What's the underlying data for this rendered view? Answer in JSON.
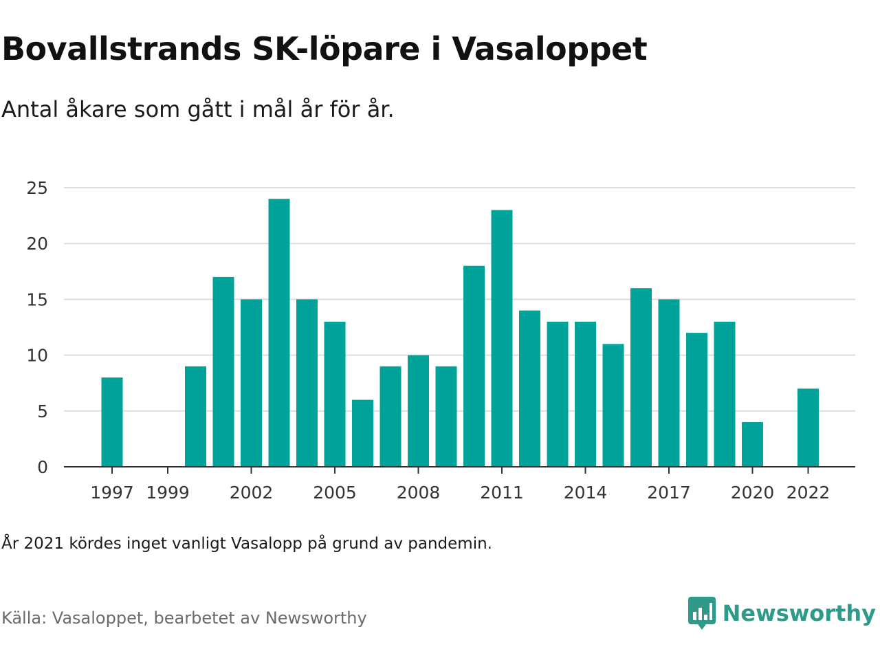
{
  "header": {
    "title": "Bovallstrands SK-löpare i Vasaloppet",
    "subtitle": "Antal åkare som gått i mål år för år."
  },
  "footer": {
    "note": "År 2021 kördes inget vanligt Vasalopp på grund av pandemin.",
    "source": "Källa: Vasaloppet, bearbetet av Newsworthy",
    "brand": "Newsworthy"
  },
  "colors": {
    "bar": "#00a39a",
    "grid": "#dddddd",
    "axis": "#333333",
    "brand": "#2e9a8a"
  },
  "chart_data": {
    "type": "bar",
    "title": "Bovallstrands SK-löpare i Vasaloppet",
    "xlabel": "",
    "ylabel": "",
    "ylim": [
      0,
      25
    ],
    "yticks": [
      0,
      5,
      10,
      15,
      20,
      25
    ],
    "grid": true,
    "categories": [
      1997,
      1998,
      1999,
      2000,
      2001,
      2002,
      2003,
      2004,
      2005,
      2006,
      2007,
      2008,
      2009,
      2010,
      2011,
      2012,
      2013,
      2014,
      2015,
      2016,
      2017,
      2018,
      2019,
      2020,
      2021,
      2022
    ],
    "values": [
      8,
      0,
      0,
      9,
      17,
      15,
      24,
      15,
      13,
      6,
      9,
      10,
      9,
      18,
      23,
      14,
      13,
      13,
      11,
      16,
      15,
      12,
      13,
      4,
      0,
      7
    ],
    "xtick_labels": [
      "1997",
      "1999",
      "2002",
      "2005",
      "2008",
      "2011",
      "2014",
      "2017",
      "2020",
      "2022"
    ]
  }
}
